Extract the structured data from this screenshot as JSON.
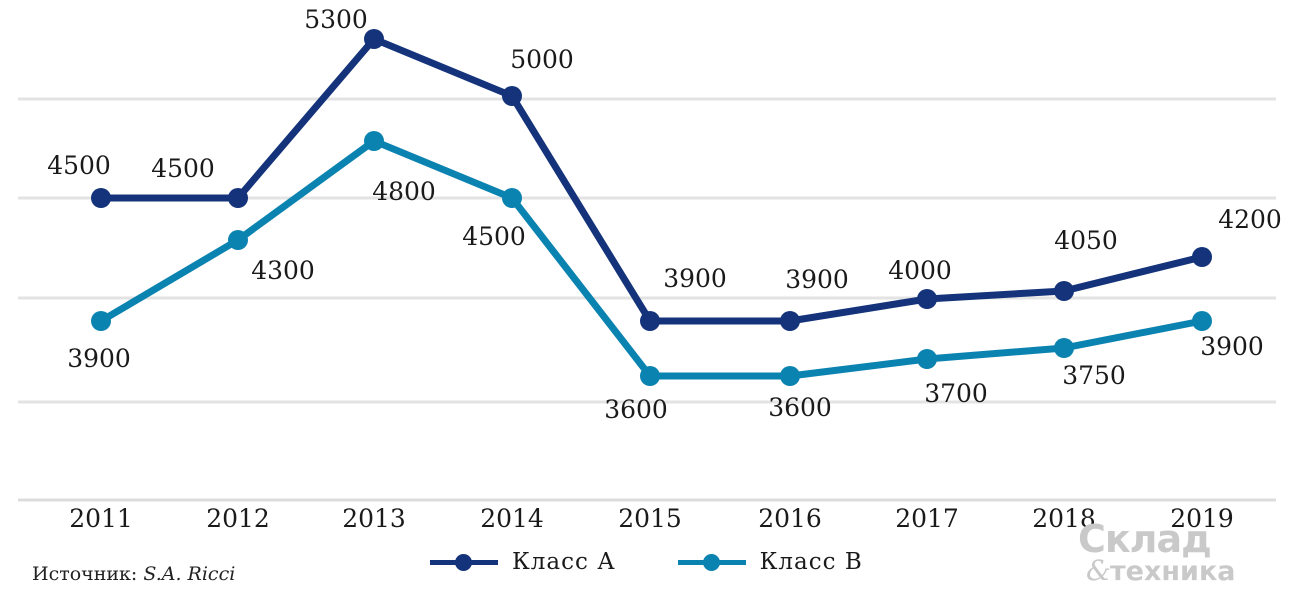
{
  "chart_data": {
    "type": "line",
    "categories": [
      "2011",
      "2012",
      "2013",
      "2014",
      "2015",
      "2016",
      "2017",
      "2018",
      "2019"
    ],
    "series": [
      {
        "name": "Класс А",
        "color": "#14337a",
        "values": [
          4500,
          4500,
          5300,
          5000,
          3900,
          3900,
          4000,
          4050,
          4200
        ]
      },
      {
        "name": "Класс В",
        "color": "#0b83b0",
        "values": [
          3900,
          4300,
          4800,
          4500,
          3600,
          3600,
          3700,
          3750,
          3900
        ]
      }
    ],
    "title": "",
    "xlabel": "",
    "ylabel": "",
    "grid": true,
    "legend_position": "bottom"
  },
  "legend": {
    "a_label": "Класс А",
    "b_label": "Класс В"
  },
  "source": {
    "prefix": "Источник: ",
    "author": "S.A. Ricci"
  },
  "logo": {
    "line1": "Склад",
    "amp": "&",
    "line2": "техника"
  }
}
